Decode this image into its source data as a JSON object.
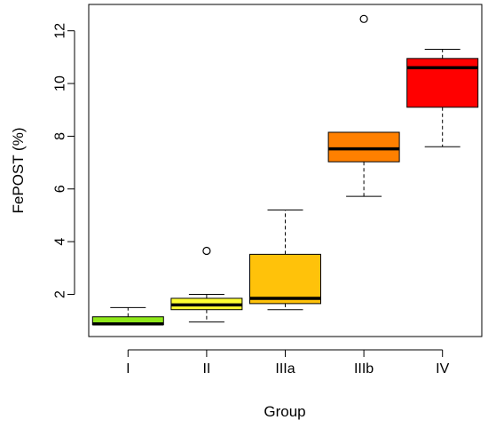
{
  "chart_data": {
    "type": "box",
    "title": "",
    "xlabel": "Group",
    "ylabel": "FePOST (%)",
    "ylim": [
      0.4,
      13.0
    ],
    "yticks": [
      2,
      4,
      6,
      8,
      10,
      12
    ],
    "grid": false,
    "legend": "none",
    "groups": [
      {
        "label": "I",
        "color": "#8FE81A",
        "whisker_low": 0.85,
        "q1": 0.85,
        "median": 0.88,
        "q3": 1.15,
        "whisker_high": 1.5,
        "outliers": []
      },
      {
        "label": "II",
        "color": "#FFFF33",
        "whisker_low": 0.95,
        "q1": 1.42,
        "median": 1.6,
        "q3": 1.85,
        "whisker_high": 2.0,
        "outliers": [
          3.65
        ]
      },
      {
        "label": "IIIa",
        "color": "#FFC20A",
        "whisker_low": 1.42,
        "q1": 1.65,
        "median": 1.85,
        "q3": 3.52,
        "whisker_high": 5.2,
        "outliers": []
      },
      {
        "label": "IIIb",
        "color": "#FF8000",
        "whisker_low": 5.72,
        "q1": 7.03,
        "median": 7.52,
        "q3": 8.15,
        "whisker_high": 8.15,
        "outliers": [
          12.45
        ]
      },
      {
        "label": "IV",
        "color": "#FF0000",
        "whisker_low": 7.6,
        "q1": 9.1,
        "median": 10.6,
        "q3": 10.95,
        "whisker_high": 11.3,
        "outliers": []
      }
    ]
  }
}
